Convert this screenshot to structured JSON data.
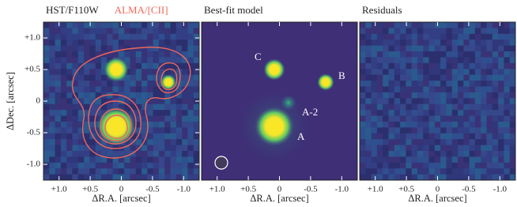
{
  "chart_data": [
    {
      "type": "image",
      "titles": [
        {
          "text": "HST/F110W",
          "color": "#222222"
        },
        {
          "text": "ALMA/[CII]",
          "color": "#f0675a"
        }
      ],
      "xlabel": "ΔR.A. [arcsec]",
      "ylabel": "ΔDec. [arcsec]",
      "xlim": [
        1.25,
        -1.25
      ],
      "ylim": [
        -1.25,
        1.25
      ],
      "xticks": [
        {
          "value": 1,
          "label": "+1.0"
        },
        {
          "value": 0.5,
          "label": "+0.5"
        },
        0,
        -0.5,
        {
          "value": -1,
          "label": "-1.0"
        }
      ],
      "yticks": [
        {
          "value": 1,
          "label": "+1.0"
        },
        {
          "value": 0.5,
          "label": "+0.5"
        },
        0,
        -0.5,
        {
          "value": -1,
          "label": "-1.0"
        }
      ]
    },
    {
      "type": "image",
      "titles": [
        {
          "text": "Best-fit model",
          "color": "#222222"
        }
      ],
      "xlabel": "ΔR.A. [arcsec]",
      "xlim": [
        1.25,
        -1.25
      ],
      "ylim": [
        -1.25,
        1.25
      ],
      "xticks": [
        {
          "value": 1,
          "label": "+1.0"
        },
        {
          "value": 0.5,
          "label": "+0.5"
        },
        0,
        -0.5,
        {
          "value": -1,
          "label": "-1.0"
        }
      ],
      "annotations": [
        "C",
        "B",
        "A-2",
        "A"
      ]
    },
    {
      "type": "image",
      "titles": [
        {
          "text": "Residuals",
          "color": "#222222"
        }
      ],
      "xlabel": "ΔR.A. [arcsec]",
      "xlim": [
        1.25,
        -1.25
      ],
      "ylim": [
        -1.25,
        1.25
      ],
      "xticks": [
        {
          "value": 1,
          "label": "+1.0"
        },
        {
          "value": 0.5,
          "label": "+0.5"
        },
        0,
        -0.5,
        {
          "value": -1,
          "label": "-1.0"
        }
      ]
    }
  ]
}
